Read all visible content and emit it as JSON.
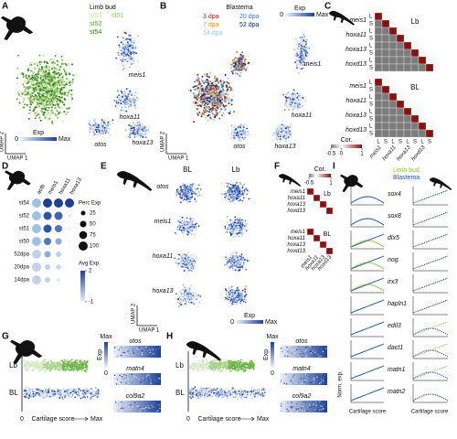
{
  "panels": {
    "A": {
      "label": "A",
      "legend_title": "Limb bud",
      "stages": [
        "st50",
        "st51",
        "st52",
        "st54"
      ],
      "genes": [
        "meis1",
        "hoxa11",
        "otos",
        "hoxa13"
      ],
      "scale_title": "Exp",
      "scale_min": "0",
      "scale_max": "Max",
      "x_axis": "UMAP 1",
      "y_axis": "UMAP 2"
    },
    "B": {
      "label": "B",
      "legend_title": "Blastema",
      "timepoints": [
        "3 dpa",
        "7 dpa",
        "14 dpa",
        "20 dpa",
        "52 dpa"
      ],
      "genes": [
        "meis1",
        "hoxa11",
        "otos",
        "hoxa13"
      ],
      "scale_title": "Exp",
      "scale_min": "0",
      "scale_max": "Max",
      "x_axis": "UMAP 1",
      "y_axis": "UMAP 2"
    },
    "C": {
      "label": "C",
      "matrices": [
        "Lb",
        "BL"
      ],
      "genes": [
        "meis1",
        "hoxa11",
        "hoxa13",
        "hoxd13"
      ],
      "subtypes": [
        "L",
        "S"
      ],
      "scale_title": "Cor.",
      "scale_ticks": [
        -0.5,
        0,
        1
      ]
    },
    "D": {
      "label": "D",
      "genes": [
        "actb",
        "meis1",
        "hoxa11",
        "hoxa13"
      ],
      "samples": [
        "st54",
        "st52",
        "st51",
        "st50",
        "52dpa",
        "20dpa",
        "14dpa"
      ],
      "size_title": "Perc Exp",
      "sizes": [
        25,
        50,
        75,
        100
      ],
      "color_title": "Avg Exp.",
      "color_ticks": [
        -1,
        2
      ]
    },
    "E": {
      "label": "E",
      "columns": [
        "BL",
        "Lb"
      ],
      "genes": [
        "otos",
        "meis1",
        "hoxa11",
        "hoxa13"
      ],
      "scale_title": "Exp",
      "scale_min": "0",
      "scale_max": "Max",
      "x_axis": "UMAP 1",
      "y_axis": "UMAP 2"
    },
    "F": {
      "label": "F",
      "matrices": [
        "Lb",
        "BL"
      ],
      "genes": [
        "meis1",
        "hoxa11",
        "hoxa13",
        "hoxd13"
      ],
      "scale_title": "Cor.",
      "scale_ticks": [
        -0.5,
        1
      ]
    },
    "G": {
      "label": "G",
      "groups": [
        "Lb",
        "BL"
      ],
      "x_axis": "Cartilage score",
      "x_min": "0",
      "x_max": "Max",
      "scale_title": "Exp",
      "scale_min": "0",
      "scale_max": "Max",
      "genes": [
        "otos",
        "matn4",
        "col9a2"
      ]
    },
    "H": {
      "label": "H",
      "groups": [
        "Lb",
        "BL"
      ],
      "x_axis": "Cartilage score",
      "x_min": "0",
      "x_max": "Max",
      "scale_title": "Exp",
      "scale_min": "0",
      "scale_max": "Max",
      "genes": [
        "otos",
        "matn4",
        "col9a2"
      ]
    },
    "I": {
      "label": "I",
      "legend": [
        "Limb bud",
        "Blastema"
      ],
      "genes": [
        "sox4",
        "sox8",
        "dlx5",
        "nog",
        "irx3",
        "hapln1",
        "edil3",
        "dact1",
        "matn1",
        "matn2"
      ],
      "y_axis": "Norm. exp.",
      "x_axis": "Cartilage score"
    }
  }
}
